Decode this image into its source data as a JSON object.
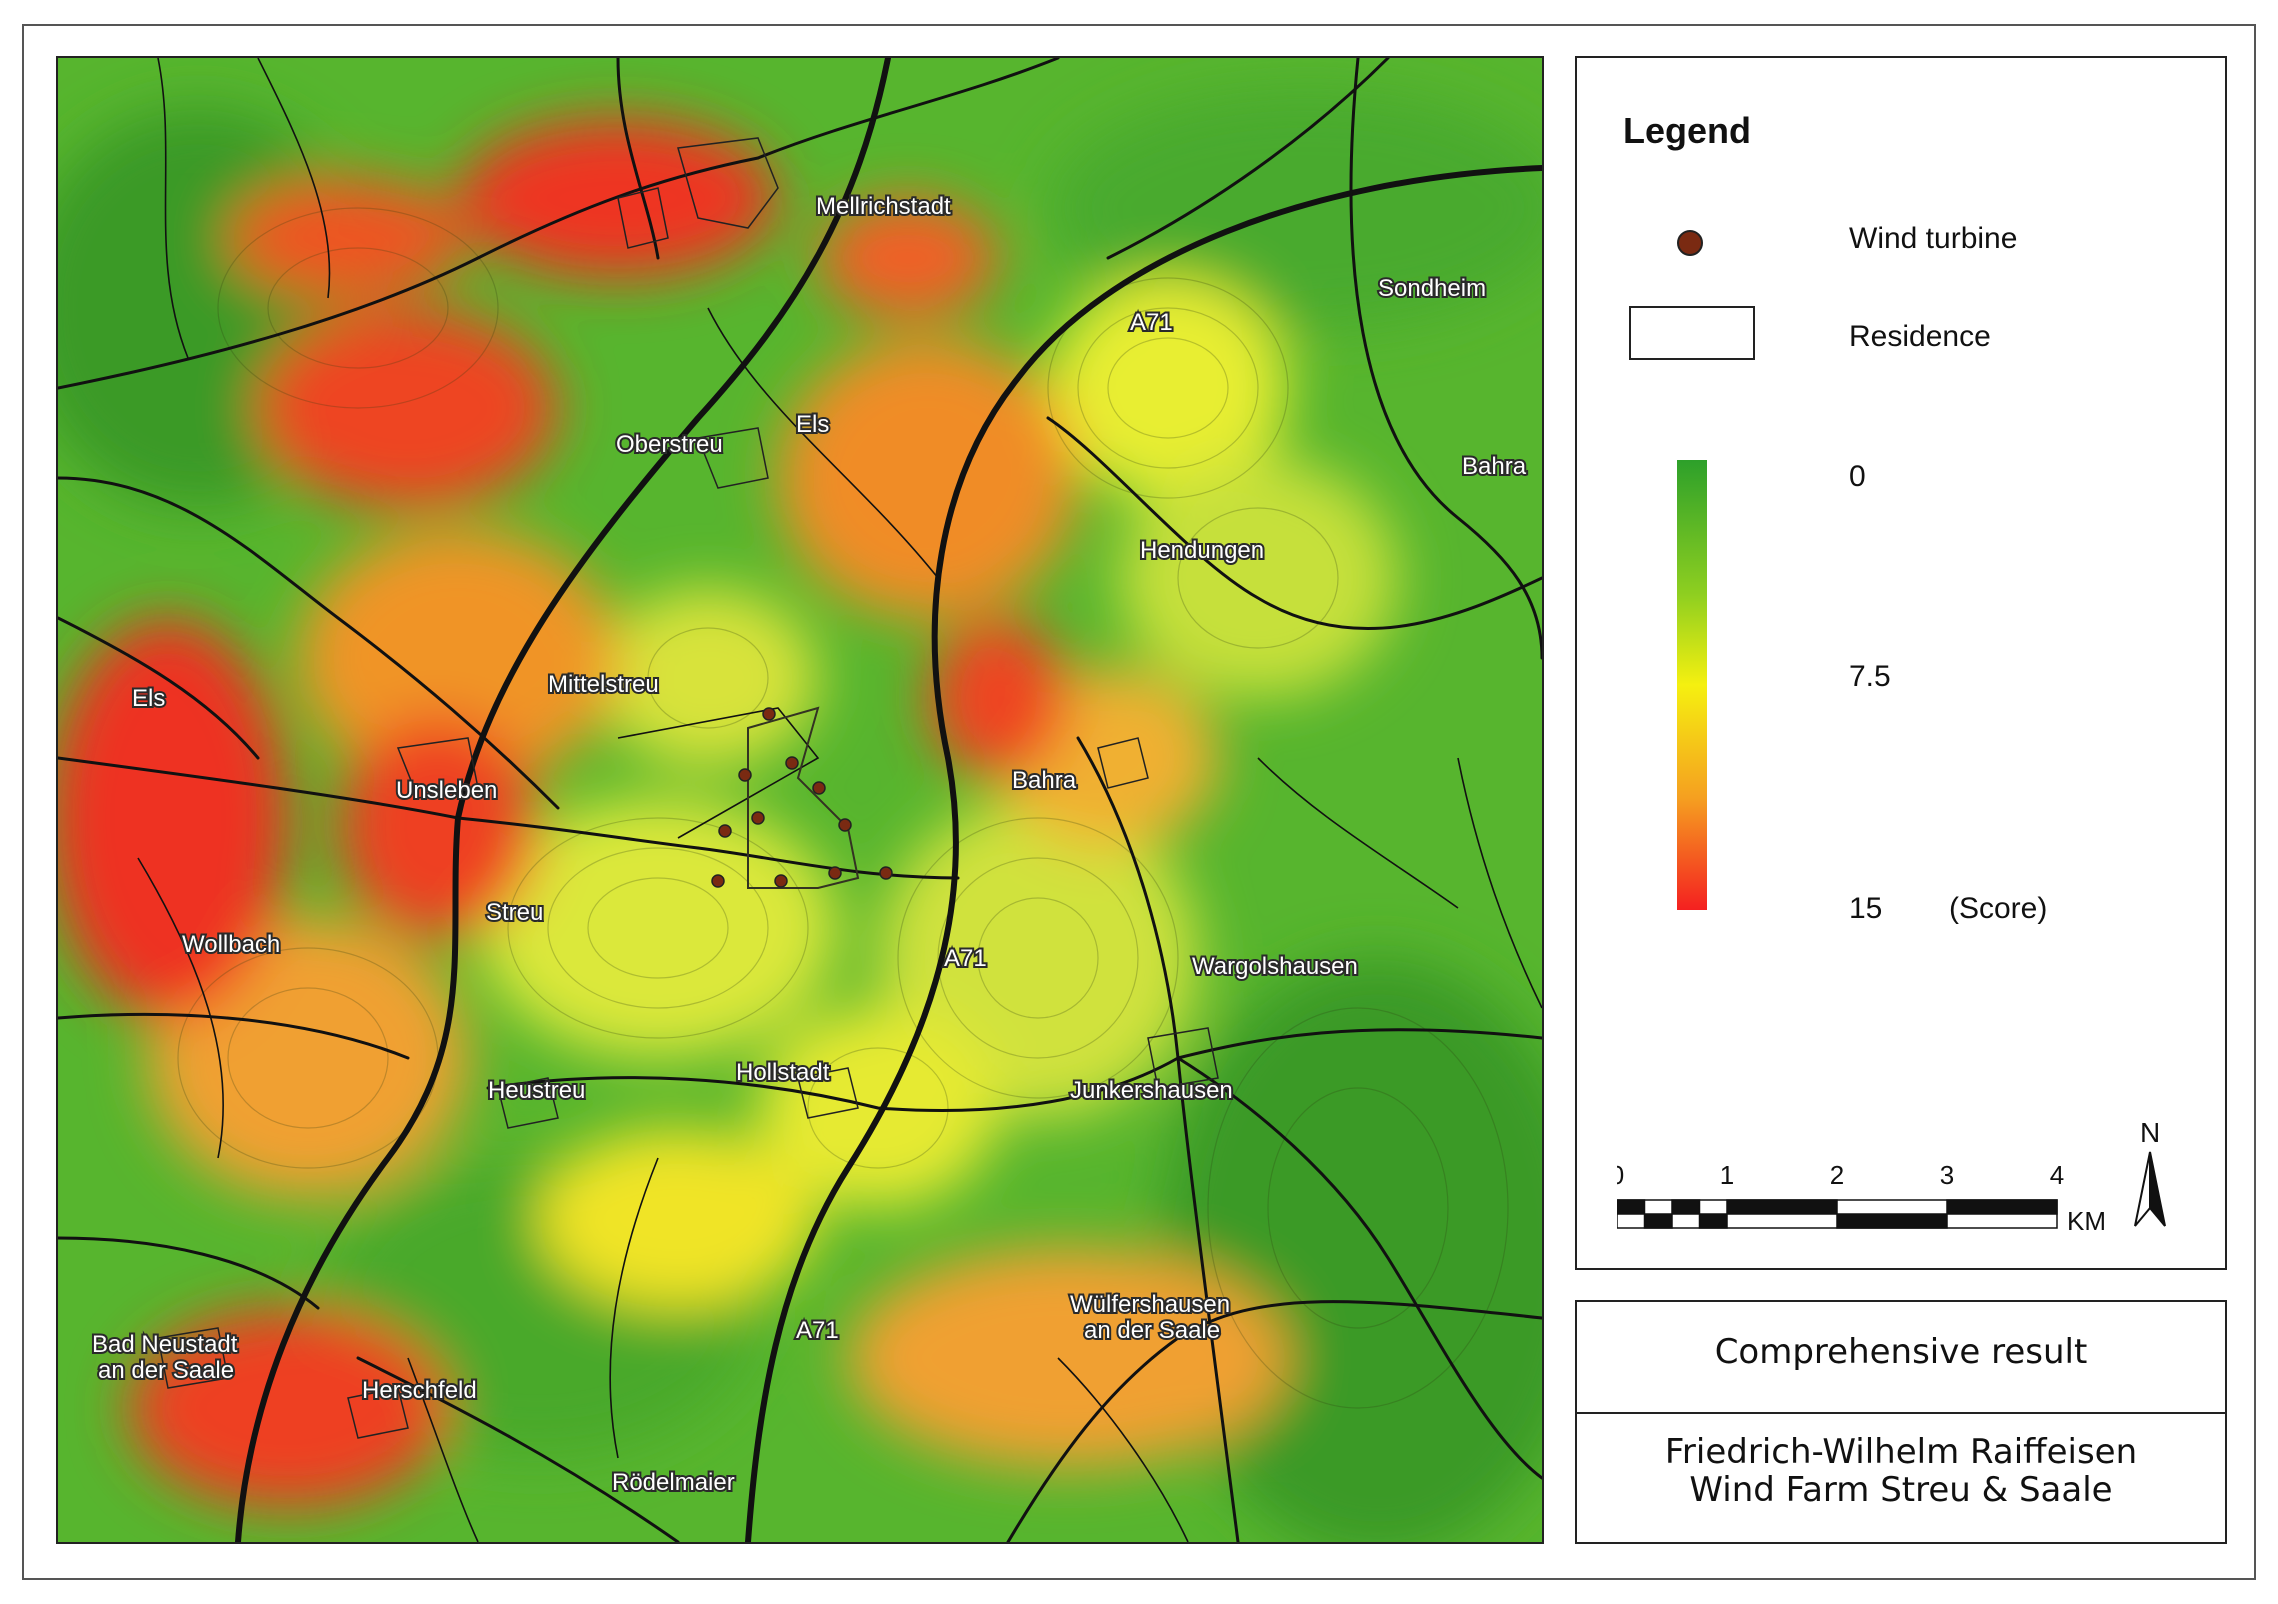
{
  "map": {
    "places": [
      {
        "name": "Mellrichstadt"
      },
      {
        "name": "A71"
      },
      {
        "name": "Sondheim"
      },
      {
        "name": "Els"
      },
      {
        "name": "Oberstreu"
      },
      {
        "name": "Bahra"
      },
      {
        "name": "Hendungen"
      },
      {
        "name": "Els"
      },
      {
        "name": "Mittelstreu"
      },
      {
        "name": "Unsleben"
      },
      {
        "name": "Bahra"
      },
      {
        "name": "Streu"
      },
      {
        "name": "A71"
      },
      {
        "name": "Wollbach"
      },
      {
        "name": "Wargolshausen"
      },
      {
        "name": "Hollstadt"
      },
      {
        "name": "Heustreu"
      },
      {
        "name": "Junkershausen"
      },
      {
        "name": "Wülfershausen"
      },
      {
        "name": "an der Saale"
      },
      {
        "name": "A71"
      },
      {
        "name": "Bad Neustadt"
      },
      {
        "name": "an der Saale"
      },
      {
        "name": "Herschfeld"
      },
      {
        "name": "Rödelmaier"
      }
    ],
    "wind_turbine_count": 11,
    "icon": "wind-turbine-dot"
  },
  "legend": {
    "title": "Legend",
    "turbine_label": "Wind turbine",
    "residence_label": "Residence",
    "score_min": "0",
    "score_mid": "7.5",
    "score_max": "15",
    "score_unit": "(Score)",
    "colors": {
      "low": "#2da02a",
      "mid": "#f5f010",
      "high": "#f42020",
      "turbine": "#7a2a12"
    }
  },
  "scale": {
    "ticks": [
      "0",
      "1",
      "2",
      "3",
      "4"
    ],
    "unit": "KM",
    "north": "N"
  },
  "title": {
    "line1": "Comprehensive result",
    "line2": "Friedrich-Wilhelm Raiffeisen",
    "line3": "Wind Farm Streu & Saale"
  }
}
